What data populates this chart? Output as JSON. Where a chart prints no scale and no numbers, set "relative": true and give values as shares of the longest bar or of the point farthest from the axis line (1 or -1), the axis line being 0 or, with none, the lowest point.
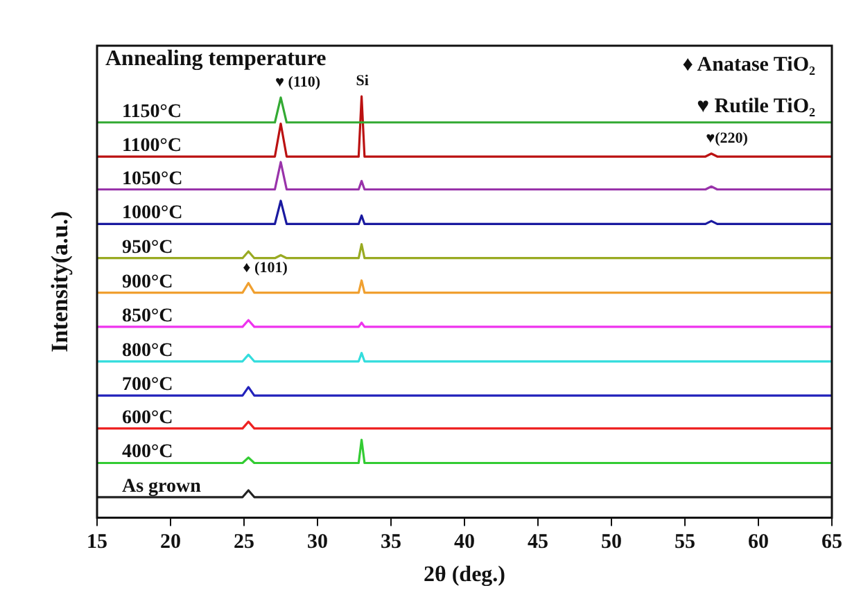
{
  "chart_data": {
    "type": "line",
    "relative": true,
    "legend_title": "Annealing temperature",
    "xlabel": "2θ (deg.)",
    "ylabel": "Intensity(a.u.)",
    "xlim": [
      15,
      65
    ],
    "xticks": [
      15,
      20,
      25,
      30,
      35,
      40,
      45,
      50,
      55,
      60,
      65
    ],
    "grid": false,
    "legend": false,
    "marker": "none",
    "line_style": "solid",
    "series": [
      {
        "name": "1150°C",
        "color": "#33aa33",
        "x": [
          15,
          27.1,
          27.5,
          27.9,
          65
        ],
        "values": [
          0.938,
          0.938,
          0.997,
          0.938,
          0.938
        ]
      },
      {
        "name": "1100°C",
        "color": "#bb1111",
        "x": [
          15,
          27.1,
          27.5,
          27.9,
          32.8,
          33,
          33.2,
          56.4,
          56.8,
          57.2,
          65
        ],
        "values": [
          0.857,
          0.857,
          0.935,
          0.857,
          0.857,
          1.0,
          0.857,
          0.857,
          0.864,
          0.857,
          0.857
        ]
      },
      {
        "name": "1050°C",
        "color": "#9933aa",
        "x": [
          15,
          27.1,
          27.5,
          27.9,
          32.8,
          33,
          33.2,
          56.4,
          56.8,
          57.2,
          65
        ],
        "values": [
          0.779,
          0.779,
          0.844,
          0.779,
          0.779,
          0.799,
          0.779,
          0.779,
          0.786,
          0.779,
          0.779
        ]
      },
      {
        "name": "1000°C",
        "color": "#1a1aa0",
        "x": [
          15,
          27.1,
          27.5,
          27.9,
          32.8,
          33,
          33.2,
          56.4,
          56.8,
          57.2,
          65
        ],
        "values": [
          0.697,
          0.697,
          0.752,
          0.697,
          0.697,
          0.717,
          0.697,
          0.697,
          0.704,
          0.697,
          0.697
        ]
      },
      {
        "name": "950°C",
        "color": "#99aa22",
        "x": [
          15,
          24.9,
          25.3,
          25.7,
          27.1,
          27.5,
          27.9,
          32.8,
          33,
          33.2,
          65
        ],
        "values": [
          0.616,
          0.616,
          0.632,
          0.616,
          0.616,
          0.623,
          0.616,
          0.616,
          0.649,
          0.616,
          0.616
        ]
      },
      {
        "name": "900°C",
        "color": "#f0a030",
        "x": [
          15,
          24.9,
          25.3,
          25.7,
          32.8,
          33,
          33.2,
          65
        ],
        "values": [
          0.534,
          0.534,
          0.557,
          0.534,
          0.534,
          0.563,
          0.534,
          0.534
        ]
      },
      {
        "name": "850°C",
        "color": "#ee33ee",
        "x": [
          15,
          24.9,
          25.3,
          25.7,
          32.8,
          33,
          33.2,
          65
        ],
        "values": [
          0.453,
          0.453,
          0.469,
          0.453,
          0.453,
          0.463,
          0.453,
          0.453
        ]
      },
      {
        "name": "800°C",
        "color": "#33dddd",
        "x": [
          15,
          24.9,
          25.3,
          25.7,
          32.8,
          33,
          33.2,
          65
        ],
        "values": [
          0.371,
          0.371,
          0.387,
          0.371,
          0.371,
          0.391,
          0.371,
          0.371
        ]
      },
      {
        "name": "700°C",
        "color": "#2222bb",
        "x": [
          15,
          24.9,
          25.3,
          25.7,
          65
        ],
        "values": [
          0.29,
          0.29,
          0.31,
          0.29,
          0.29
        ]
      },
      {
        "name": "600°C",
        "color": "#ee2222",
        "x": [
          15,
          24.9,
          25.3,
          25.7,
          65
        ],
        "values": [
          0.212,
          0.212,
          0.228,
          0.212,
          0.212
        ]
      },
      {
        "name": "400°C",
        "color": "#33cc33",
        "x": [
          15,
          24.9,
          25.3,
          25.7,
          32.8,
          33,
          33.2,
          65
        ],
        "values": [
          0.13,
          0.13,
          0.143,
          0.13,
          0.13,
          0.185,
          0.13,
          0.13
        ]
      },
      {
        "name": "As grown",
        "color": "#222222",
        "x": [
          15,
          24.9,
          25.3,
          25.7,
          65
        ],
        "values": [
          0.049,
          0.049,
          0.065,
          0.049,
          0.049
        ]
      }
    ],
    "annotations": [
      {
        "text": "♥ (110)",
        "x": 27.5,
        "y": 0.997
      },
      {
        "text": "Si",
        "x": 33,
        "y": 1.0
      },
      {
        "text": "♦ (101)",
        "x": 25.3,
        "y": 0.557
      },
      {
        "text": "♥(220)",
        "x": 56.8,
        "y": 0.864
      },
      "♦ Anatase TiO₂",
      "♥ Rutile TiO₂"
    ]
  }
}
